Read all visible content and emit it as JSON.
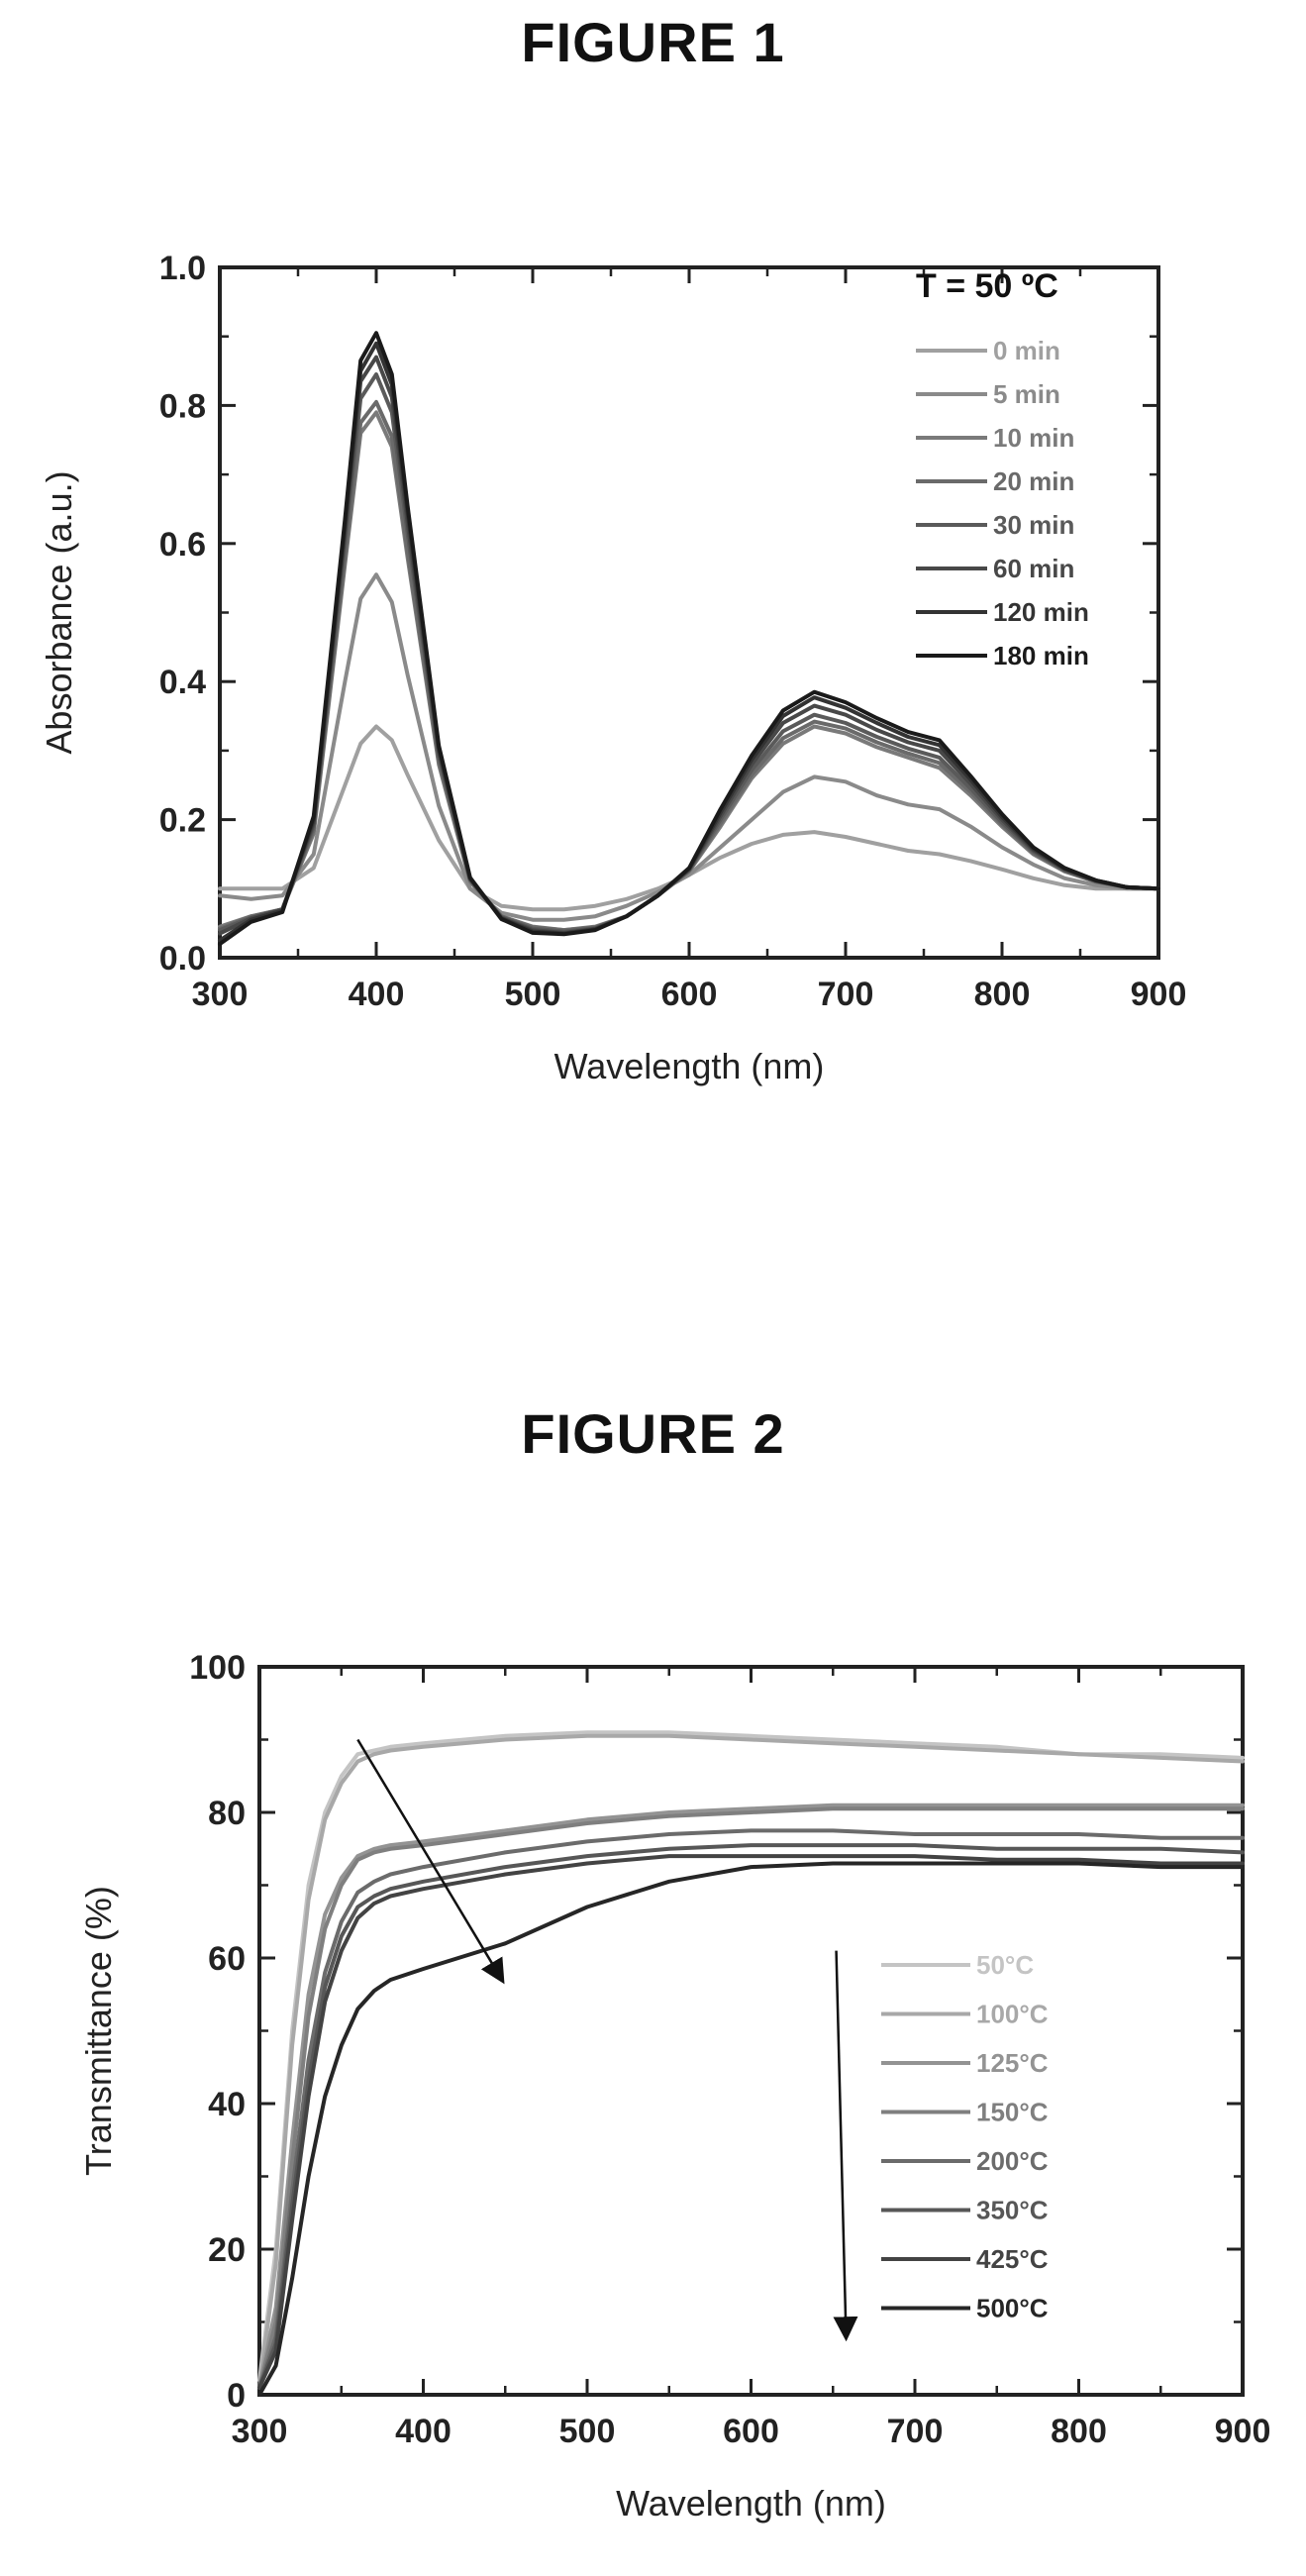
{
  "figures": [
    {
      "title": "FIGURE 1"
    },
    {
      "title": "FIGURE 2"
    }
  ],
  "chart_data": [
    {
      "type": "line",
      "xlabel": "Wavelength (nm)",
      "ylabel": "Absorbance (a.u.)",
      "xlim": [
        300,
        900
      ],
      "ylim": [
        0.0,
        1.0
      ],
      "xticks": [
        300,
        400,
        500,
        600,
        700,
        800,
        900
      ],
      "yticks": [
        0.0,
        0.2,
        0.4,
        0.6,
        0.8,
        1.0
      ],
      "ytick_labels": [
        "0.0",
        "0.2",
        "0.4",
        "0.6",
        "0.8",
        "1.0"
      ],
      "legend_title": "T = 50 ºC",
      "legend_position": "top-right",
      "grid": false,
      "series_colors": [
        "#a0a0a0",
        "#8a8a8a",
        "#7a7a7a",
        "#6a6a6a",
        "#5a5a5a",
        "#484848",
        "#333333",
        "#1a1a1a"
      ],
      "x": [
        300,
        320,
        340,
        360,
        380,
        390,
        400,
        410,
        420,
        440,
        460,
        480,
        500,
        520,
        540,
        560,
        580,
        600,
        620,
        640,
        660,
        680,
        700,
        720,
        740,
        760,
        780,
        800,
        820,
        840,
        860,
        880,
        900
      ],
      "series": [
        {
          "name": "0 min",
          "values": [
            0.1,
            0.1,
            0.1,
            0.13,
            0.25,
            0.31,
            0.335,
            0.315,
            0.265,
            0.17,
            0.1,
            0.075,
            0.07,
            0.07,
            0.075,
            0.085,
            0.1,
            0.12,
            0.145,
            0.165,
            0.178,
            0.182,
            0.175,
            0.165,
            0.155,
            0.15,
            0.14,
            0.128,
            0.115,
            0.105,
            0.1,
            0.1,
            0.1
          ]
        },
        {
          "name": "5 min",
          "values": [
            0.09,
            0.085,
            0.09,
            0.15,
            0.4,
            0.52,
            0.555,
            0.515,
            0.41,
            0.22,
            0.1,
            0.065,
            0.055,
            0.055,
            0.06,
            0.075,
            0.095,
            0.12,
            0.16,
            0.2,
            0.24,
            0.262,
            0.255,
            0.235,
            0.222,
            0.215,
            0.19,
            0.16,
            0.135,
            0.115,
            0.105,
            0.1,
            0.1
          ]
        },
        {
          "name": "10 min",
          "values": [
            0.045,
            0.06,
            0.07,
            0.18,
            0.57,
            0.76,
            0.79,
            0.74,
            0.58,
            0.28,
            0.11,
            0.06,
            0.045,
            0.04,
            0.045,
            0.06,
            0.09,
            0.125,
            0.19,
            0.26,
            0.31,
            0.335,
            0.325,
            0.305,
            0.29,
            0.275,
            0.235,
            0.19,
            0.15,
            0.125,
            0.11,
            0.102,
            0.1
          ]
        },
        {
          "name": "20 min",
          "values": [
            0.042,
            0.06,
            0.07,
            0.185,
            0.58,
            0.775,
            0.805,
            0.755,
            0.59,
            0.285,
            0.112,
            0.06,
            0.044,
            0.04,
            0.044,
            0.06,
            0.09,
            0.126,
            0.195,
            0.265,
            0.318,
            0.342,
            0.332,
            0.312,
            0.296,
            0.282,
            0.24,
            0.193,
            0.152,
            0.126,
            0.11,
            0.102,
            0.1
          ]
        },
        {
          "name": "30 min",
          "values": [
            0.04,
            0.058,
            0.07,
            0.19,
            0.6,
            0.81,
            0.845,
            0.79,
            0.615,
            0.292,
            0.113,
            0.059,
            0.042,
            0.038,
            0.043,
            0.06,
            0.09,
            0.127,
            0.2,
            0.272,
            0.328,
            0.352,
            0.34,
            0.32,
            0.303,
            0.29,
            0.245,
            0.196,
            0.154,
            0.127,
            0.111,
            0.102,
            0.1
          ]
        },
        {
          "name": "60 min",
          "values": [
            0.035,
            0.057,
            0.07,
            0.195,
            0.615,
            0.835,
            0.87,
            0.812,
            0.63,
            0.298,
            0.114,
            0.058,
            0.04,
            0.036,
            0.042,
            0.06,
            0.09,
            0.128,
            0.205,
            0.28,
            0.34,
            0.365,
            0.352,
            0.33,
            0.312,
            0.3,
            0.252,
            0.2,
            0.156,
            0.128,
            0.111,
            0.102,
            0.1
          ]
        },
        {
          "name": "120 min",
          "values": [
            0.025,
            0.055,
            0.068,
            0.2,
            0.625,
            0.85,
            0.89,
            0.83,
            0.645,
            0.303,
            0.115,
            0.057,
            0.038,
            0.035,
            0.041,
            0.06,
            0.09,
            0.129,
            0.21,
            0.287,
            0.35,
            0.377,
            0.362,
            0.34,
            0.32,
            0.308,
            0.258,
            0.204,
            0.158,
            0.129,
            0.112,
            0.102,
            0.1
          ]
        },
        {
          "name": "180 min",
          "values": [
            0.02,
            0.052,
            0.066,
            0.205,
            0.635,
            0.865,
            0.905,
            0.845,
            0.655,
            0.307,
            0.116,
            0.056,
            0.036,
            0.034,
            0.04,
            0.06,
            0.09,
            0.13,
            0.215,
            0.293,
            0.358,
            0.385,
            0.37,
            0.347,
            0.327,
            0.315,
            0.263,
            0.208,
            0.16,
            0.13,
            0.112,
            0.102,
            0.1
          ]
        }
      ]
    },
    {
      "type": "line",
      "xlabel": "Wavelength (nm)",
      "ylabel": "Transmittance (%)",
      "xlim": [
        300,
        900
      ],
      "ylim": [
        0,
        100
      ],
      "xticks": [
        300,
        400,
        500,
        600,
        700,
        800,
        900
      ],
      "yticks": [
        0,
        20,
        40,
        60,
        80,
        100
      ],
      "ytick_labels": [
        "0",
        "20",
        "40",
        "60",
        "80",
        "100"
      ],
      "legend_position": "lower-right",
      "grid": false,
      "series_colors": [
        "#c4c4c4",
        "#a8a8a8",
        "#939393",
        "#7f7f7f",
        "#6b6b6b",
        "#575757",
        "#434343",
        "#262626"
      ],
      "annotations": [
        {
          "type": "arrow",
          "from": [
            360,
            90
          ],
          "to": [
            448,
            57
          ]
        },
        {
          "type": "arrow",
          "from": [
            652,
            61
          ],
          "to": [
            658,
            8
          ]
        }
      ],
      "x": [
        300,
        310,
        320,
        330,
        340,
        350,
        360,
        370,
        380,
        400,
        450,
        500,
        550,
        600,
        650,
        700,
        750,
        800,
        850,
        900
      ],
      "series": [
        {
          "name": "50°C",
          "values": [
            2,
            20,
            50,
            70,
            80,
            85,
            88,
            88.5,
            89,
            89.5,
            90.5,
            91,
            91,
            90.5,
            90,
            89.5,
            89,
            88,
            88,
            87.5
          ]
        },
        {
          "name": "100°C",
          "values": [
            1,
            18,
            48,
            68,
            79,
            84,
            87,
            88,
            88.5,
            89,
            90,
            90.5,
            90.5,
            90,
            89.5,
            89,
            88.5,
            88,
            87.5,
            87
          ]
        },
        {
          "name": "125°C",
          "values": [
            1,
            12,
            35,
            55,
            66,
            71,
            74,
            75,
            75.5,
            76,
            77.5,
            79,
            80,
            80.5,
            81,
            81,
            81,
            81,
            81,
            81
          ]
        },
        {
          "name": "150°C",
          "values": [
            1,
            10,
            32,
            52,
            64,
            70,
            73.5,
            74.5,
            75,
            75.5,
            77,
            78.5,
            79.5,
            80,
            80.5,
            80.5,
            80.5,
            80.5,
            80.5,
            80.5
          ]
        },
        {
          "name": "200°C",
          "values": [
            1,
            8,
            28,
            46,
            58,
            65,
            69,
            70.5,
            71.5,
            72.5,
            74.5,
            76,
            77,
            77.5,
            77.5,
            77,
            77,
            77,
            76.5,
            76.5
          ]
        },
        {
          "name": "350°C",
          "values": [
            1,
            7,
            26,
            43,
            56,
            63,
            67,
            68.5,
            69.5,
            70.5,
            72.5,
            74,
            75,
            75.5,
            75.5,
            75.5,
            75,
            75,
            75,
            74.5
          ]
        },
        {
          "name": "425°C",
          "values": [
            1,
            6,
            24,
            41,
            54,
            61,
            65.5,
            67.5,
            68.5,
            69.5,
            71.5,
            73,
            74,
            74,
            74,
            74,
            73.5,
            73.5,
            73,
            73
          ]
        },
        {
          "name": "500°C",
          "values": [
            0,
            4,
            16,
            30,
            41,
            48,
            53,
            55.5,
            57,
            58.5,
            62,
            67,
            70.5,
            72.5,
            73,
            73,
            73,
            73,
            72.5,
            72.5
          ]
        }
      ]
    }
  ]
}
